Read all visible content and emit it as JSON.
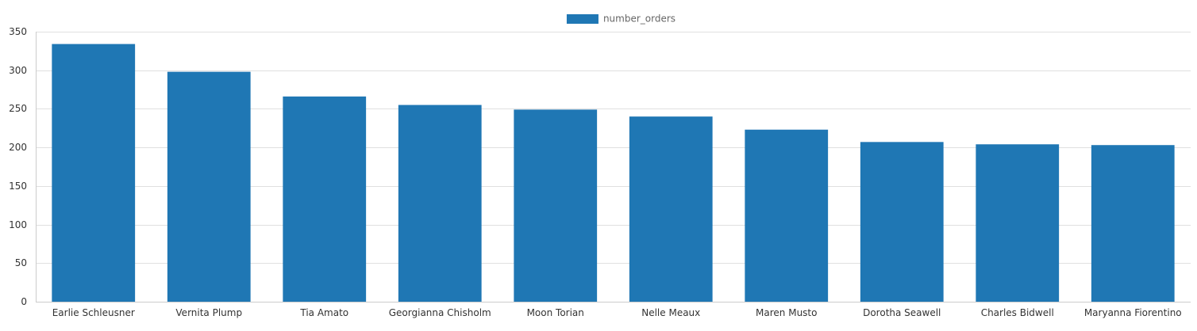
{
  "chart_data": {
    "type": "bar",
    "categories": [
      "Earlie Schleusner",
      "Vernita Plump",
      "Tia Amato",
      "Georgianna Chisholm",
      "Moon Torian",
      "Nelle Meaux",
      "Maren Musto",
      "Dorotha Seawell",
      "Charles Bidwell",
      "Maryanna Fiorentino"
    ],
    "series": [
      {
        "name": "number_orders",
        "values": [
          334,
          298,
          266,
          255,
          249,
          240,
          223,
          207,
          204,
          203
        ],
        "color": "#1f77b4"
      }
    ],
    "title": "",
    "xlabel": "",
    "ylabel": "",
    "ylim": [
      0,
      350
    ],
    "yticks": [
      0,
      50,
      100,
      150,
      200,
      250,
      300,
      350
    ],
    "grid": true,
    "legend_position": "top-center"
  }
}
